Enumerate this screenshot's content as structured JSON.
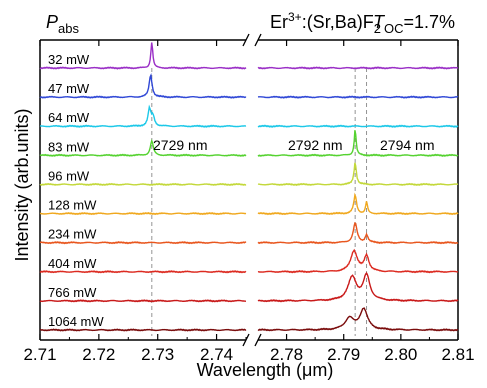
{
  "chart_data": {
    "type": "line",
    "title": {
      "label_p": "P",
      "label_sub": "abs",
      "er_prefix": "Er",
      "er_sup": "3+",
      "er_suffix": ":(Sr,Ba)F",
      "er_sub": "2",
      "toc_t": "T",
      "toc_sub": "OC",
      "toc_value": "=1.7%"
    },
    "xlabel_prefix": "Wavelength (",
    "xlabel_mu": "μ",
    "xlabel_suffix": "m)",
    "ylabel": "Intensity (arb.units)",
    "x_ticks": [
      "2.71",
      "2.72",
      "2.73",
      "2.74",
      "2.78",
      "2.79",
      "2.80",
      "2.81"
    ],
    "x_segments": [
      [
        2.71,
        2.745
      ],
      [
        2.775,
        2.81
      ]
    ],
    "annotations": [
      "2729 nm",
      "2792 nm",
      "2794 nm"
    ],
    "grid": false,
    "series": [
      {
        "name": "32 mW",
        "color": "#9a2fc6",
        "peaks": [
          {
            "x": 2.729,
            "h": 1.0,
            "w": 0.0002
          }
        ]
      },
      {
        "name": "47 mW",
        "color": "#3048d6",
        "peaks": [
          {
            "x": 2.7288,
            "h": 0.85,
            "w": 0.0003
          }
        ]
      },
      {
        "name": "64 mW",
        "color": "#1cc8e8",
        "peaks": [
          {
            "x": 2.7286,
            "h": 0.65,
            "w": 0.0003
          },
          {
            "x": 2.7292,
            "h": 0.35,
            "w": 0.0003
          }
        ]
      },
      {
        "name": "83 mW",
        "color": "#55d230",
        "peaks": [
          {
            "x": 2.729,
            "h": 0.55,
            "w": 0.0003
          },
          {
            "x": 2.792,
            "h": 1.0,
            "w": 0.0002
          }
        ]
      },
      {
        "name": "96 mW",
        "color": "#c3d83a",
        "peaks": [
          {
            "x": 2.792,
            "h": 0.85,
            "w": 0.00025
          }
        ]
      },
      {
        "name": "128 mW",
        "color": "#f0a81e",
        "peaks": [
          {
            "x": 2.792,
            "h": 0.7,
            "w": 0.0003
          },
          {
            "x": 2.794,
            "h": 0.45,
            "w": 0.0002
          }
        ]
      },
      {
        "name": "234 mW",
        "color": "#e8561e",
        "peaks": [
          {
            "x": 2.792,
            "h": 0.75,
            "w": 0.0004
          },
          {
            "x": 2.794,
            "h": 0.3,
            "w": 0.0003
          }
        ]
      },
      {
        "name": "404 mW",
        "color": "#dc2a20",
        "peaks": [
          {
            "x": 2.7918,
            "h": 0.8,
            "w": 0.0007
          },
          {
            "x": 2.794,
            "h": 0.6,
            "w": 0.0005
          }
        ]
      },
      {
        "name": "766 mW",
        "color": "#c81818",
        "peaks": [
          {
            "x": 2.7915,
            "h": 0.9,
            "w": 0.0009
          },
          {
            "x": 2.794,
            "h": 0.95,
            "w": 0.0007
          }
        ]
      },
      {
        "name": "1064 mW",
        "color": "#7a0c0c",
        "peaks": [
          {
            "x": 2.791,
            "h": 0.45,
            "w": 0.0009
          },
          {
            "x": 2.7935,
            "h": 0.8,
            "w": 0.0008
          }
        ]
      }
    ]
  }
}
